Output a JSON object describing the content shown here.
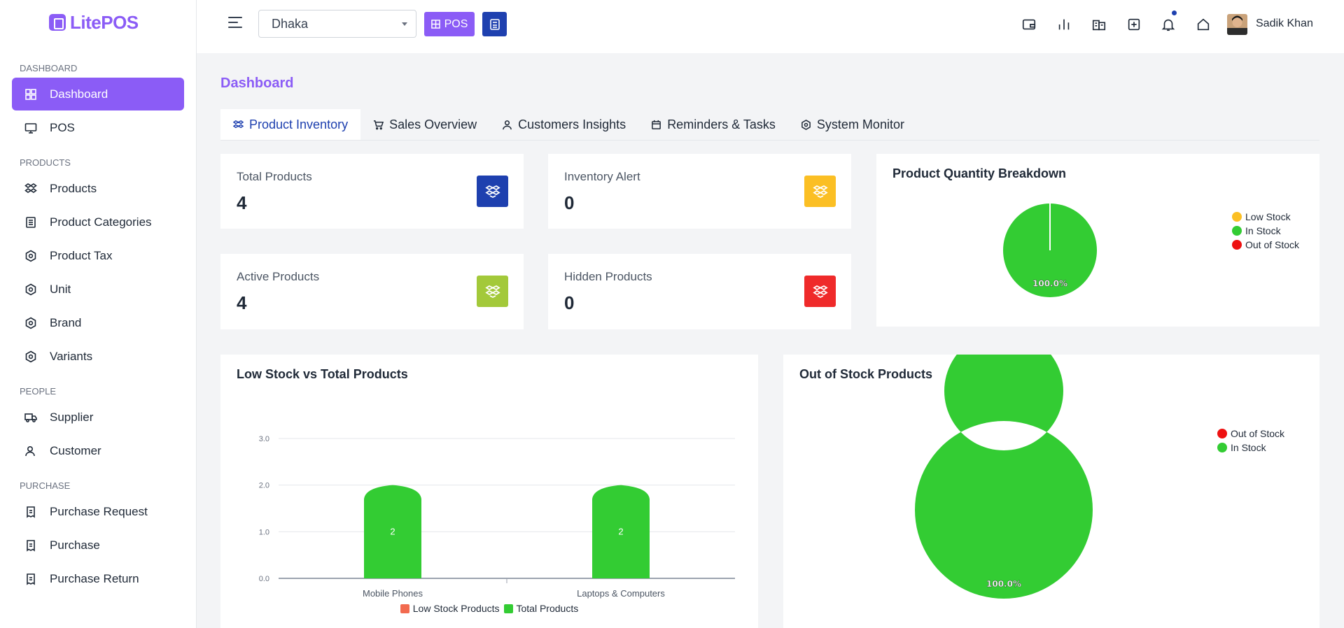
{
  "app": {
    "logo": "LitePOS"
  },
  "sidebar": {
    "sections": [
      {
        "title": "DASHBOARD",
        "items": [
          {
            "label": "Dashboard",
            "icon": "dashboard-icon"
          },
          {
            "label": "POS",
            "icon": "monitor-icon"
          }
        ]
      },
      {
        "title": "PRODUCTS",
        "items": [
          {
            "label": "Products",
            "icon": "dropbox-icon"
          },
          {
            "label": "Product Categories",
            "icon": "list-icon"
          },
          {
            "label": "Product Tax",
            "icon": "hexagon-icon"
          },
          {
            "label": "Unit",
            "icon": "hexagon-icon"
          },
          {
            "label": "Brand",
            "icon": "hexagon-icon"
          },
          {
            "label": "Variants",
            "icon": "hexagon-icon"
          }
        ]
      },
      {
        "title": "PEOPLE",
        "items": [
          {
            "label": "Supplier",
            "icon": "truck-icon"
          },
          {
            "label": "Customer",
            "icon": "users-icon"
          }
        ]
      },
      {
        "title": "PURCHASE",
        "items": [
          {
            "label": "Purchase Request",
            "icon": "receipt-icon"
          },
          {
            "label": "Purchase",
            "icon": "receipt-icon"
          },
          {
            "label": "Purchase Return",
            "icon": "receipt-icon"
          }
        ]
      }
    ]
  },
  "topbar": {
    "branch": "Dhaka",
    "pos_label": "POS",
    "user": "Sadik Khan",
    "icons": [
      "wallet-icon",
      "bar-chart-icon",
      "building-icon",
      "plus-square-icon",
      "bell-icon",
      "home-icon"
    ]
  },
  "page": {
    "title": "Dashboard",
    "tabs": [
      "Product Inventory",
      "Sales Overview",
      "Customers Insights",
      "Reminders & Tasks",
      "System Monitor"
    ]
  },
  "stats": [
    {
      "label": "Total Products",
      "value": "4",
      "color": "#1e40af"
    },
    {
      "label": "Inventory Alert",
      "value": "0",
      "color": "#fbbf24"
    },
    {
      "label": "Active Products",
      "value": "4",
      "color": "#a3c93a"
    },
    {
      "label": "Hidden Products",
      "value": "0",
      "color": "#ef2a2a"
    }
  ],
  "colors": {
    "accent": "#8b5cf6",
    "low": "#fbbf24",
    "in": "#33cc33",
    "out": "#ee1111",
    "lowBar": "#f26a4f"
  },
  "chart_data": [
    {
      "type": "pie",
      "title": "Product Quantity Breakdown",
      "labels": [
        "Low Stock",
        "In Stock",
        "Out of Stock"
      ],
      "values": [
        0,
        4,
        0
      ],
      "slice_label": "100.0%",
      "legend": "top-right"
    },
    {
      "type": "bar",
      "title": "Low Stock vs Total Products",
      "categories": [
        "Mobile Phones",
        "Laptops & Computers"
      ],
      "series": [
        {
          "name": "Low Stock Products",
          "values": [
            0,
            0
          ]
        },
        {
          "name": "Total Products",
          "values": [
            2,
            2
          ]
        }
      ],
      "yticks": [
        "0.0",
        "1.0",
        "2.0",
        "3.0"
      ],
      "ylim": [
        0,
        3
      ],
      "grid": true,
      "legend": "bottom"
    },
    {
      "type": "pie",
      "title": "Out of Stock Products",
      "labels": [
        "Out of Stock",
        "In Stock"
      ],
      "values": [
        0,
        4
      ],
      "slice_label": "100.0%",
      "donut": true,
      "legend": "top-right"
    }
  ]
}
